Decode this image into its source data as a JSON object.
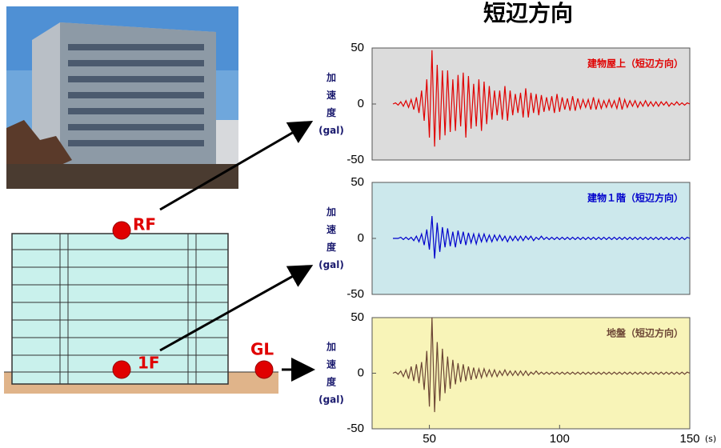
{
  "title": "短辺方向",
  "diagram": {
    "labels": [
      "RF",
      "1F",
      "GL"
    ]
  },
  "chart_data": [
    {
      "type": "line",
      "title": "建物屋上（短辺方向）",
      "ylabel": "加速度(gal)",
      "xlim": [
        28,
        150
      ],
      "ylim": [
        -50,
        50
      ],
      "yticks": [
        -50,
        0,
        50
      ],
      "x": [
        36,
        37,
        38,
        39,
        40,
        41,
        42,
        43,
        44,
        45,
        46,
        47,
        48,
        49,
        50,
        51,
        52,
        53,
        54,
        55,
        56,
        57,
        58,
        59,
        60,
        61,
        62,
        63,
        64,
        65,
        66,
        67,
        68,
        69,
        70,
        71,
        72,
        73,
        74,
        75,
        76,
        77,
        78,
        79,
        80,
        81,
        82,
        83,
        84,
        85,
        86,
        87,
        88,
        89,
        90,
        91,
        92,
        93,
        94,
        95,
        96,
        97,
        98,
        99,
        100,
        101,
        102,
        103,
        104,
        105,
        106,
        107,
        108,
        109,
        110,
        111,
        112,
        113,
        114,
        115,
        116,
        117,
        118,
        119,
        120,
        121,
        122,
        123,
        124,
        125,
        126,
        127,
        128,
        129,
        130,
        131,
        132,
        133,
        134,
        135,
        136,
        137,
        138,
        139,
        140,
        141,
        142,
        143,
        144,
        145,
        146,
        147,
        148,
        149,
        150
      ],
      "series": [
        {
          "color": "#e00000",
          "values": [
            0,
            1,
            -1,
            2,
            -2,
            3,
            -3,
            4,
            -5,
            6,
            -8,
            12,
            -15,
            22,
            -30,
            48,
            -38,
            35,
            -32,
            30,
            -28,
            30,
            -25,
            22,
            -24,
            26,
            -20,
            28,
            -30,
            25,
            -22,
            18,
            -20,
            22,
            -24,
            20,
            -18,
            16,
            -14,
            12,
            -10,
            12,
            -14,
            16,
            -15,
            12,
            -10,
            9,
            -8,
            10,
            -12,
            14,
            -12,
            10,
            -8,
            9,
            -10,
            8,
            -7,
            6,
            -6,
            7,
            -8,
            9,
            -7,
            6,
            -5,
            5,
            -6,
            7,
            -6,
            5,
            -4,
            4,
            -3,
            4,
            -5,
            6,
            -5,
            4,
            -4,
            3,
            -3,
            4,
            -3,
            3,
            -4,
            6,
            -5,
            4,
            -3,
            3,
            -2,
            3,
            -3,
            2,
            -2,
            3,
            -2,
            2,
            -2,
            2,
            -2,
            2,
            -1,
            2,
            -2,
            1,
            -1,
            2,
            -1,
            1,
            -1,
            1,
            0
          ]
        }
      ]
    },
    {
      "type": "line",
      "title": "建物１階（短辺方向）",
      "ylabel": "加速度(gal)",
      "xlim": [
        28,
        150
      ],
      "ylim": [
        -50,
        50
      ],
      "yticks": [
        -50,
        0,
        50
      ],
      "x": [
        36,
        37,
        38,
        39,
        40,
        41,
        42,
        43,
        44,
        45,
        46,
        47,
        48,
        49,
        50,
        51,
        52,
        53,
        54,
        55,
        56,
        57,
        58,
        59,
        60,
        61,
        62,
        63,
        64,
        65,
        66,
        67,
        68,
        69,
        70,
        71,
        72,
        73,
        74,
        75,
        76,
        77,
        78,
        79,
        80,
        81,
        82,
        83,
        84,
        85,
        86,
        87,
        88,
        89,
        90,
        91,
        92,
        93,
        94,
        95,
        96,
        97,
        98,
        99,
        100,
        101,
        102,
        103,
        104,
        105,
        106,
        107,
        108,
        109,
        110,
        111,
        112,
        113,
        114,
        115,
        116,
        117,
        118,
        119,
        120,
        121,
        122,
        123,
        124,
        125,
        126,
        127,
        128,
        129,
        130,
        131,
        132,
        133,
        134,
        135,
        136,
        137,
        138,
        139,
        140,
        141,
        142,
        143,
        144,
        145,
        146,
        147,
        148,
        149,
        150
      ],
      "series": [
        {
          "color": "#0000cc",
          "values": [
            0,
            0,
            0,
            1,
            -1,
            1,
            -1,
            1,
            -2,
            2,
            -3,
            4,
            -6,
            8,
            -10,
            20,
            -18,
            14,
            -12,
            10,
            -8,
            9,
            -7,
            6,
            -8,
            7,
            -5,
            6,
            -6,
            5,
            -4,
            4,
            -5,
            4,
            -3,
            4,
            -3,
            3,
            -3,
            3,
            -2,
            3,
            -2,
            2,
            -3,
            2,
            -2,
            2,
            -2,
            2,
            -2,
            2,
            -1,
            2,
            -2,
            1,
            -1,
            2,
            -1,
            1,
            -1,
            1,
            -1,
            1,
            -1,
            1,
            -1,
            1,
            -1,
            1,
            -1,
            1,
            -1,
            1,
            -1,
            1,
            -1,
            1,
            -1,
            1,
            -1,
            1,
            -1,
            1,
            -1,
            1,
            -1,
            1,
            -1,
            1,
            -1,
            1,
            -1,
            1,
            -1,
            1,
            -1,
            1,
            -1,
            1,
            -1,
            1,
            -1,
            1,
            -1,
            1,
            -1,
            1,
            -1,
            1,
            -1,
            1,
            -1,
            1,
            0
          ]
        }
      ]
    },
    {
      "type": "line",
      "title": "地盤（短辺方向）",
      "ylabel": "加速度(gal)",
      "xlabel": "(s)",
      "xlim": [
        28,
        150
      ],
      "ylim": [
        -50,
        50
      ],
      "yticks": [
        -50,
        0,
        50
      ],
      "xticks": [
        50,
        100,
        150
      ],
      "x": [
        36,
        37,
        38,
        39,
        40,
        41,
        42,
        43,
        44,
        45,
        46,
        47,
        48,
        49,
        50,
        51,
        52,
        53,
        54,
        55,
        56,
        57,
        58,
        59,
        60,
        61,
        62,
        63,
        64,
        65,
        66,
        67,
        68,
        69,
        70,
        71,
        72,
        73,
        74,
        75,
        76,
        77,
        78,
        79,
        80,
        81,
        82,
        83,
        84,
        85,
        86,
        87,
        88,
        89,
        90,
        91,
        92,
        93,
        94,
        95,
        96,
        97,
        98,
        99,
        100,
        101,
        102,
        103,
        104,
        105,
        106,
        107,
        108,
        109,
        110,
        111,
        112,
        113,
        114,
        115,
        116,
        117,
        118,
        119,
        120,
        121,
        122,
        123,
        124,
        125,
        126,
        127,
        128,
        129,
        130,
        131,
        132,
        133,
        134,
        135,
        136,
        137,
        138,
        139,
        140,
        141,
        142,
        143,
        144,
        145,
        146,
        147,
        148,
        149,
        150
      ],
      "series": [
        {
          "color": "#6b4434",
          "values": [
            0,
            1,
            -1,
            2,
            -3,
            3,
            -5,
            6,
            -7,
            8,
            -9,
            10,
            -15,
            20,
            -30,
            50,
            -35,
            28,
            -25,
            22,
            -18,
            15,
            -14,
            12,
            -10,
            9,
            -8,
            8,
            -7,
            6,
            -6,
            5,
            -5,
            4,
            -4,
            4,
            -3,
            3,
            -3,
            3,
            -3,
            2,
            -2,
            3,
            -2,
            2,
            -2,
            2,
            -2,
            2,
            -2,
            2,
            -2,
            1,
            -1,
            2,
            -1,
            1,
            -1,
            1,
            -1,
            1,
            -1,
            1,
            -1,
            1,
            -1,
            1,
            -1,
            1,
            -1,
            1,
            -1,
            1,
            -1,
            1,
            -1,
            1,
            -1,
            1,
            -1,
            1,
            -1,
            1,
            -1,
            1,
            -1,
            1,
            -1,
            1,
            -1,
            1,
            -1,
            1,
            -1,
            1,
            -1,
            1,
            -1,
            1,
            -1,
            1,
            -1,
            1,
            -1,
            1,
            -1,
            1,
            -1,
            1,
            -1,
            1,
            -1,
            1,
            0
          ]
        }
      ]
    }
  ]
}
